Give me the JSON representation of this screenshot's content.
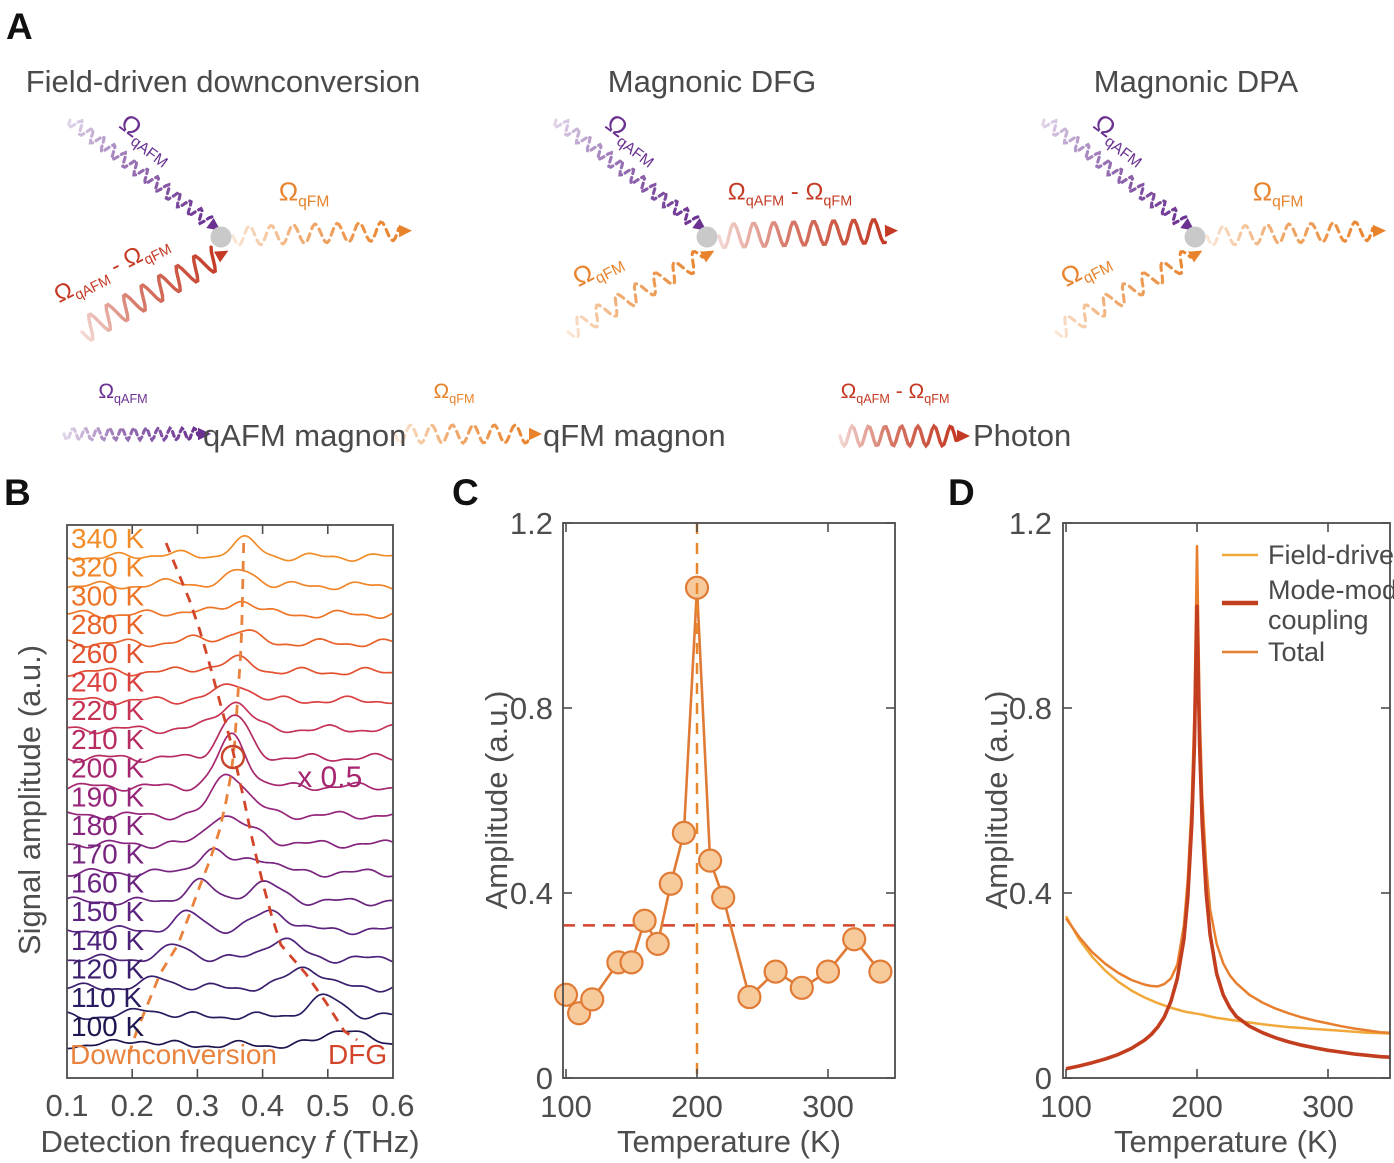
{
  "panels": {
    "a": "A",
    "b": "B",
    "c": "C",
    "d": "D"
  },
  "colors": {
    "qAFM": "#6A3191",
    "qFM": "#E8832C",
    "diff": "#C43A24",
    "text": "#4D4D4D",
    "vertex": "#C9C9C9",
    "axis": "#4D4D4D"
  },
  "panelA": {
    "symbols": {
      "qAFM": "Ω_{qAFM}",
      "qFM": "Ω_{qFM}",
      "diff": "Ω_{qAFM} - Ω_{qFM}"
    },
    "diagrams": [
      {
        "title": "Field-driven downconversion",
        "inputs": [
          "qAFM",
          "diff"
        ],
        "output": "qFM"
      },
      {
        "title": "Magnonic DFG",
        "inputs": [
          "qAFM",
          "qFM"
        ],
        "output": "diff"
      },
      {
        "title": "Magnonic DPA",
        "inputs": [
          "qAFM",
          "qFM"
        ],
        "output": "qFM"
      }
    ],
    "legend": [
      {
        "symbol": "qAFM",
        "text": "qAFM magnon"
      },
      {
        "symbol": "qFM",
        "text": "qFM magnon"
      },
      {
        "symbol": "diff",
        "text": "Photon"
      }
    ]
  },
  "chart_data": [
    {
      "panel": "B",
      "type": "line",
      "title": "",
      "xlabel": "Detection frequency *f* (THz)",
      "ylabel": "Signal amplitude (a.u.)",
      "xlim": [
        0.1,
        0.6
      ],
      "xticks": [
        0.1,
        0.2,
        0.3,
        0.4,
        0.5,
        0.6
      ],
      "xtick_marks": [
        0.2,
        0.3,
        0.4,
        0.5
      ],
      "branch_labels": {
        "downconversion": {
          "text": "Downconversion",
          "color": "#E8823C"
        },
        "dfg": {
          "text": "DFG",
          "color": "#D2452B"
        }
      },
      "scale_note": {
        "text": "x 0.5",
        "color": "#A62670",
        "f": 0.503,
        "trace": "200 K"
      },
      "circle_annotation": {
        "f": 0.3545,
        "trace": "200 K",
        "color": "#C8452B"
      },
      "traces": [
        {
          "label": "340 K",
          "color": "#F18D28",
          "dc_f": 0.371,
          "dc_amp": 0.6,
          "dfg_f": 0.252,
          "dfg_amp": 0.12
        },
        {
          "label": "320 K",
          "color": "#F0852A",
          "dc_f": 0.37,
          "dc_amp": 0.55,
          "dfg_f": 0.27,
          "dfg_amp": 0.12
        },
        {
          "label": "300 K",
          "color": "#EE7527",
          "dc_f": 0.369,
          "dc_amp": 0.5,
          "dfg_f": 0.288,
          "dfg_amp": 0.13
        },
        {
          "label": "280 K",
          "color": "#E96228",
          "dc_f": 0.368,
          "dc_amp": 0.42,
          "dfg_f": 0.303,
          "dfg_amp": 0.14
        },
        {
          "label": "260 K",
          "color": "#E2522F",
          "dc_f": 0.366,
          "dc_amp": 0.4,
          "dfg_f": 0.316,
          "dfg_amp": 0.16
        },
        {
          "label": "240 K",
          "color": "#DA4140",
          "dc_f": 0.363,
          "dc_amp": 0.5,
          "dfg_f": 0.328,
          "dfg_amp": 0.18
        },
        {
          "label": "220 K",
          "color": "#C53457",
          "dc_f": 0.36,
          "dc_amp": 0.75,
          "dfg_f": 0.34,
          "dfg_amp": 0.28
        },
        {
          "label": "210 K",
          "color": "#B52B62",
          "dc_f": 0.357,
          "dc_amp": 1.15,
          "dfg_f": 0.352,
          "dfg_amp": 0.32
        },
        {
          "label": "200 K",
          "color": "#A62670",
          "dc_f": 0.352,
          "dc_amp": 1.4,
          "dfg_f": 0.362,
          "dfg_amp": 0.38
        },
        {
          "label": "190 K",
          "color": "#97257A",
          "dc_f": 0.344,
          "dc_amp": 1.25,
          "dfg_f": 0.372,
          "dfg_amp": 0.45
        },
        {
          "label": "180 K",
          "color": "#86247E",
          "dc_f": 0.334,
          "dc_amp": 0.92,
          "dfg_f": 0.381,
          "dfg_amp": 0.48
        },
        {
          "label": "170 K",
          "color": "#782580",
          "dc_f": 0.32,
          "dc_amp": 0.78,
          "dfg_f": 0.391,
          "dfg_amp": 0.55
        },
        {
          "label": "160 K",
          "color": "#6A2480",
          "dc_f": 0.303,
          "dc_amp": 0.68,
          "dfg_f": 0.402,
          "dfg_amp": 0.62
        },
        {
          "label": "150 K",
          "color": "#5C2380",
          "dc_f": 0.287,
          "dc_amp": 0.58,
          "dfg_f": 0.414,
          "dfg_amp": 0.66
        },
        {
          "label": "140 K",
          "color": "#4D2179",
          "dc_f": 0.27,
          "dc_amp": 0.46,
          "dfg_f": 0.428,
          "dfg_amp": 0.68
        },
        {
          "label": "120 K",
          "color": "#3A1F6E",
          "dc_f": 0.243,
          "dc_amp": 0.33,
          "dfg_f": 0.466,
          "dfg_amp": 0.72
        },
        {
          "label": "110 K",
          "color": "#2B1B60",
          "dc_f": 0.225,
          "dc_amp": 0.25,
          "dfg_f": 0.497,
          "dfg_amp": 0.66
        },
        {
          "label": "100 K",
          "color": "#1D1650",
          "dc_f": 0.207,
          "dc_amp": 0.18,
          "dfg_f": 0.525,
          "dfg_amp": 0.6
        }
      ]
    },
    {
      "panel": "C",
      "type": "scatter",
      "xlabel": "Temperature (K)",
      "ylabel": "Amplitude (a.u.)",
      "xlim": [
        98,
        350
      ],
      "ylim": [
        0,
        1.2
      ],
      "xticks": [
        100,
        200,
        300
      ],
      "yticks": [
        0,
        0.4,
        0.8,
        1.2
      ],
      "x": [
        100,
        110,
        120,
        140,
        150,
        160,
        170,
        180,
        190,
        200,
        210,
        220,
        240,
        260,
        280,
        300,
        320,
        340
      ],
      "y": [
        0.18,
        0.14,
        0.17,
        0.25,
        0.25,
        0.34,
        0.29,
        0.42,
        0.53,
        1.06,
        0.47,
        0.39,
        0.175,
        0.23,
        0.195,
        0.23,
        0.3,
        0.23
      ],
      "line_color": "#E07B36",
      "marker": {
        "fill": "#F7CA9C",
        "stroke": "#E07B36"
      },
      "vline": {
        "x": 200,
        "color": "#E8872E"
      },
      "hline": {
        "y": 0.33,
        "color": "#D2452B"
      }
    },
    {
      "panel": "D",
      "type": "line",
      "xlabel": "Temperature (K)",
      "ylabel": "Amplitude (a.u.)",
      "xlim": [
        98,
        348
      ],
      "ylim": [
        0,
        1.2
      ],
      "xticks": [
        100,
        200,
        300
      ],
      "yticks": [
        0,
        0.4,
        0.8,
        1.2
      ],
      "legend_position": "top-right",
      "x": [
        100,
        110,
        120,
        130,
        140,
        150,
        160,
        165,
        170,
        175,
        180,
        185,
        190,
        193,
        196,
        198,
        200,
        202,
        204,
        207,
        210,
        215,
        220,
        225,
        230,
        240,
        250,
        260,
        270,
        280,
        290,
        300,
        310,
        320,
        330,
        340,
        348
      ],
      "series": [
        {
          "name": "Field-driven",
          "legend_lines": [
            "Field-driven"
          ],
          "color": "#F2A93B",
          "width": 2.5,
          "values": [
            0.35,
            0.3,
            0.262,
            0.232,
            0.208,
            0.189,
            0.174,
            0.168,
            0.162,
            0.157,
            0.152,
            0.148,
            0.144,
            0.142,
            0.141,
            0.14,
            0.139,
            0.138,
            0.137,
            0.135,
            0.133,
            0.13,
            0.128,
            0.126,
            0.124,
            0.12,
            0.116,
            0.113,
            0.11,
            0.108,
            0.106,
            0.104,
            0.102,
            0.1,
            0.098,
            0.097,
            0.096
          ]
        },
        {
          "name": "Mode-mode coupling",
          "legend_lines": [
            "Mode-mode",
            "coupling"
          ],
          "color": "#C33D1F",
          "width": 3.6,
          "values": [
            0.02,
            0.026,
            0.033,
            0.041,
            0.051,
            0.064,
            0.082,
            0.094,
            0.11,
            0.132,
            0.165,
            0.215,
            0.3,
            0.39,
            0.55,
            0.72,
            1.02,
            0.72,
            0.55,
            0.4,
            0.31,
            0.225,
            0.18,
            0.152,
            0.133,
            0.112,
            0.098,
            0.087,
            0.078,
            0.071,
            0.065,
            0.06,
            0.056,
            0.052,
            0.049,
            0.046,
            0.045
          ]
        },
        {
          "name": "Total",
          "legend_lines": [
            "Total"
          ],
          "color": "#E87F2F",
          "width": 2.5,
          "values": [
            0.345,
            0.305,
            0.272,
            0.247,
            0.227,
            0.212,
            0.202,
            0.199,
            0.198,
            0.203,
            0.215,
            0.245,
            0.33,
            0.43,
            0.6,
            0.79,
            1.15,
            0.8,
            0.61,
            0.46,
            0.365,
            0.29,
            0.248,
            0.222,
            0.205,
            0.18,
            0.163,
            0.15,
            0.14,
            0.131,
            0.124,
            0.118,
            0.112,
            0.107,
            0.103,
            0.099,
            0.098
          ]
        }
      ]
    }
  ]
}
